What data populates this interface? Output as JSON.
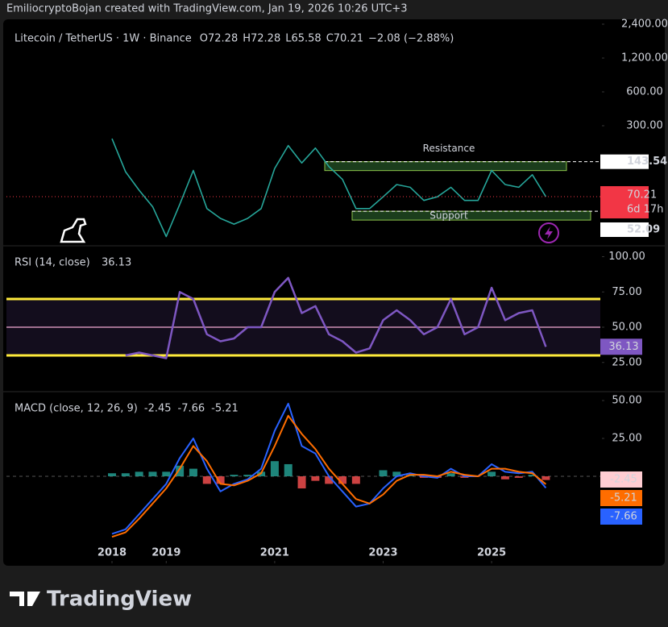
{
  "header": {
    "text": "EmiliocryptoBojan created with TradingView.com, Jan 19, 2026 10:26 UTC+3"
  },
  "legend": {
    "symbol": "Litecoin / TetherUS · 1W · Binance",
    "items": [
      {
        "key": "O",
        "value": 72.28
      },
      {
        "key": "H",
        "value": 72.28
      },
      {
        "key": "L",
        "value": 65.58
      },
      {
        "key": "C",
        "value": 70.21
      }
    ],
    "change": "−2.08 (−2.88%)"
  },
  "price": {
    "yticks": [
      {
        "value": 2400,
        "label": "2,400.00"
      },
      {
        "value": 1200,
        "label": "1,200.00"
      },
      {
        "value": 600,
        "label": "600.00"
      },
      {
        "value": 300,
        "label": "300.00"
      }
    ],
    "log_scale": true,
    "resistance": {
      "label": "Resistance",
      "value": 143.54
    },
    "support": {
      "label": "Support",
      "value": 52.09
    },
    "countdown": "6d 17h",
    "x": [
      2018,
      2018.25,
      2018.5,
      2018.75,
      2019,
      2019.25,
      2019.5,
      2019.75,
      2020,
      2020.25,
      2020.5,
      2020.75,
      2021,
      2021.25,
      2021.5,
      2021.75,
      2022,
      2022.25,
      2022.5,
      2022.75,
      2023,
      2023.25,
      2023.5,
      2023.75,
      2024,
      2024.25,
      2024.5,
      2024.75,
      2025,
      2025.25,
      2025.5,
      2025.75,
      2026
    ],
    "close": [
      230,
      117,
      80,
      57,
      31,
      60,
      120,
      55,
      45,
      40,
      45,
      55,
      125,
      200,
      140,
      190,
      130,
      100,
      55,
      55,
      70,
      90,
      85,
      65,
      70,
      85,
      65,
      65,
      120,
      90,
      85,
      110,
      70.21
    ]
  },
  "xticks": [
    {
      "value": 2018,
      "label": "2018"
    },
    {
      "value": 2019,
      "label": "2019"
    },
    {
      "value": 2021,
      "label": "2021"
    },
    {
      "value": 2023,
      "label": "2023"
    },
    {
      "value": 2025,
      "label": "2025"
    }
  ],
  "rsi": {
    "title": "RSI (14, close)",
    "yticks": [
      {
        "value": 100,
        "label": "100.00"
      },
      {
        "value": 75,
        "label": "75.00"
      },
      {
        "value": 50,
        "label": "50.00"
      },
      {
        "value": 25,
        "label": "25.00"
      }
    ],
    "upper": 70,
    "middle": 50,
    "lower": 30,
    "values": [
      null,
      30,
      32,
      30,
      28,
      75,
      70,
      45,
      40,
      42,
      50,
      50,
      75,
      85,
      60,
      65,
      45,
      40,
      32,
      35,
      55,
      62,
      55,
      45,
      50,
      70,
      45,
      50,
      78,
      55,
      60,
      62,
      36.13
    ]
  },
  "macd": {
    "title": "MACD (close, 12, 26, 9)",
    "yticks": [
      {
        "value": 50,
        "label": "50.00"
      },
      {
        "value": 25,
        "label": "25.00"
      }
    ],
    "zero": 0,
    "histogram": [
      2,
      2,
      3,
      3,
      3,
      7,
      5,
      -5,
      -5,
      1,
      1,
      3,
      10,
      8,
      -8,
      -3,
      -5,
      -5,
      -5,
      0,
      4,
      3,
      1,
      -1,
      -1,
      2,
      -1,
      0,
      3,
      -2,
      -1,
      1,
      -2.45
    ],
    "macd": [
      -38,
      -35,
      -25,
      -15,
      -5,
      12,
      25,
      5,
      -10,
      -5,
      -2,
      5,
      30,
      48,
      20,
      15,
      0,
      -10,
      -20,
      -18,
      -8,
      0,
      2,
      0,
      -1,
      5,
      0,
      0,
      8,
      3,
      2,
      3,
      -7.66
    ],
    "signal": [
      -40,
      -37,
      -28,
      -18,
      -8,
      5,
      20,
      10,
      -5,
      -6,
      -3,
      2,
      20,
      40,
      28,
      18,
      5,
      -5,
      -15,
      -18,
      -12,
      -3,
      1,
      1,
      0,
      3,
      1,
      0,
      5,
      5,
      3,
      2,
      -5.21
    ]
  },
  "footer": {
    "brand": "TradingView"
  }
}
